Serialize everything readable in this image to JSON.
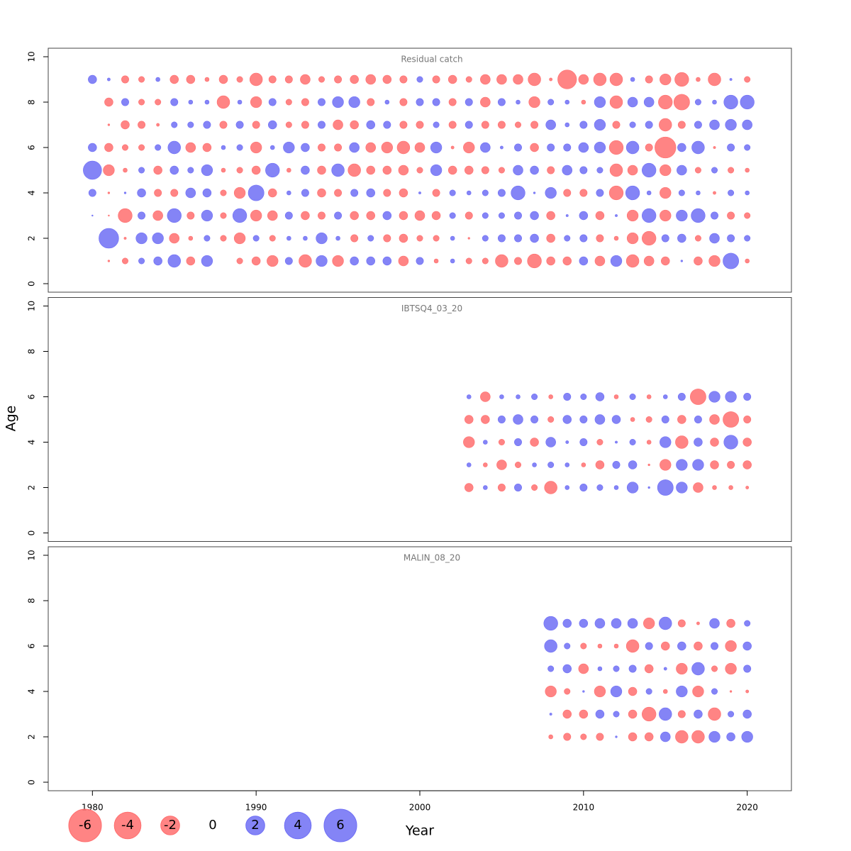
{
  "chart_data": {
    "type": "bubble",
    "xlabel": "Year",
    "ylabel": "Age",
    "xlim": [
      1977.3,
      2022.7
    ],
    "xticks": [
      1980,
      1990,
      2000,
      2010,
      2020
    ],
    "ylim": [
      -0.375,
      10.375
    ],
    "yticks": [
      0,
      2,
      4,
      6,
      8,
      10
    ],
    "positive_color": "#6f6ff5",
    "negative_color": "#ff6f6f",
    "legend": {
      "values": [
        -6,
        -4,
        -2,
        0,
        2,
        4,
        6
      ]
    },
    "panels": [
      {
        "title": "Residual catch",
        "x": [
          1980,
          1981,
          1982,
          1983,
          1984,
          1985,
          1986,
          1987,
          1988,
          1989,
          1990,
          1991,
          1992,
          1993,
          1994,
          1995,
          1996,
          1997,
          1998,
          1999,
          2000,
          2001,
          2002,
          2003,
          2004,
          2005,
          2006,
          2007,
          2008,
          2009,
          2010,
          2011,
          2012,
          2013,
          2014,
          2015,
          2016,
          2017,
          2018,
          2019,
          2020
        ],
        "ages": [
          9,
          8,
          7,
          6,
          5,
          4,
          3,
          2,
          1
        ],
        "values": [
          [
            0.4,
            0.05,
            -0.3,
            -0.2,
            0.1,
            -0.4,
            -0.4,
            -0.1,
            -0.4,
            -0.2,
            -0.9,
            -0.3,
            -0.3,
            -0.55,
            -0.2,
            -0.3,
            -0.4,
            -0.55,
            -0.4,
            -0.3,
            0.2,
            -0.3,
            -0.4,
            -0.2,
            -0.55,
            -0.55,
            -0.55,
            -0.9,
            -0.05,
            -2,
            -0.55,
            -0.9,
            -0.9,
            0.1,
            -0.3,
            -0.7,
            -1.1,
            -0.1,
            -0.9,
            0.03,
            -0.2
          ],
          [
            null,
            -0.4,
            0.3,
            -0.2,
            -0.2,
            0.3,
            0.1,
            0.1,
            -0.9,
            0.1,
            -0.7,
            0.3,
            -0.2,
            -0.3,
            0.3,
            0.7,
            0.7,
            -0.3,
            0.1,
            -0.3,
            0.3,
            0.3,
            -0.3,
            0.3,
            -0.55,
            0.3,
            0.1,
            -0.7,
            0.2,
            0.1,
            -0.1,
            0.7,
            -0.9,
            0.55,
            0.55,
            -1.1,
            -1.4,
            0.2,
            0.1,
            1.1,
            1.1
          ],
          [
            null,
            -0.02,
            -0.4,
            -0.3,
            -0.05,
            0.2,
            0.2,
            0.3,
            -0.3,
            0.3,
            -0.3,
            0.4,
            -0.2,
            -0.3,
            0.3,
            -0.55,
            -0.4,
            0.4,
            0.3,
            -0.3,
            -0.3,
            0.2,
            -0.3,
            0.3,
            -0.3,
            -0.3,
            -0.2,
            -0.3,
            0.55,
            0.1,
            0.3,
            0.7,
            -0.3,
            0.2,
            0.3,
            -0.9,
            -0.3,
            0.3,
            0.55,
            0.7,
            0.55
          ],
          [
            0.4,
            -0.4,
            -0.2,
            -0.2,
            0.2,
            0.9,
            -0.55,
            -0.4,
            0.1,
            0.2,
            -0.7,
            0.1,
            0.7,
            0.4,
            -0.3,
            -0.3,
            0.55,
            -0.55,
            -0.7,
            -0.9,
            -0.55,
            0.7,
            -0.05,
            -0.7,
            0.55,
            0.05,
            0.3,
            -0.4,
            0.3,
            0.3,
            0.55,
            0.7,
            -1.1,
            0.9,
            -0.3,
            -2.5,
            0.4,
            0.9,
            -0.03,
            0.3,
            0.2
          ],
          [
            1.9,
            -0.7,
            -0.1,
            0.2,
            -0.4,
            0.4,
            0.2,
            0.7,
            -0.1,
            -0.2,
            -0.4,
            1.1,
            -0.1,
            0.4,
            -0.4,
            0.9,
            -0.9,
            -0.4,
            -0.4,
            -0.55,
            -0.2,
            0.7,
            -0.4,
            -0.4,
            -0.3,
            -0.2,
            0.55,
            0.4,
            -0.3,
            0.55,
            0.3,
            0.2,
            -0.9,
            -0.55,
            1.1,
            -0.7,
            0.55,
            -0.2,
            0.2,
            -0.2,
            -0.1
          ],
          [
            0.3,
            -0.02,
            0.02,
            0.4,
            -0.3,
            -0.3,
            0.55,
            0.4,
            -0.2,
            -0.7,
            1.4,
            -0.4,
            0.1,
            0.3,
            -0.4,
            -0.3,
            0.3,
            0.4,
            -0.3,
            -0.4,
            0.03,
            -0.3,
            0.2,
            0.1,
            0.2,
            0.3,
            1.1,
            0.02,
            0.7,
            -0.3,
            -0.3,
            0.3,
            -1.1,
            1.1,
            0.1,
            -0.7,
            0.2,
            0.1,
            -0.05,
            0.2,
            0.1
          ],
          [
            0.01,
            -0.01,
            -1.1,
            0.3,
            -0.55,
            1.1,
            -0.3,
            0.7,
            -0.2,
            1.1,
            -0.7,
            -0.55,
            0.3,
            -0.4,
            -0.3,
            0.3,
            -0.4,
            -0.4,
            0.4,
            -0.4,
            -0.55,
            -0.4,
            0.2,
            -0.3,
            0.2,
            0.2,
            0.3,
            0.4,
            -0.4,
            0.03,
            0.4,
            -0.4,
            0.03,
            -0.7,
            1.1,
            -0.7,
            0.7,
            1.1,
            0.3,
            -0.3,
            -0.2
          ],
          [
            null,
            2.2,
            -0.03,
            0.7,
            0.7,
            -0.55,
            -0.1,
            0.2,
            -0.2,
            -0.7,
            0.2,
            -0.2,
            0.1,
            0.1,
            0.7,
            0.1,
            -0.3,
            0.2,
            -0.3,
            -0.4,
            -0.2,
            -0.2,
            0.1,
            -0.02,
            0.2,
            0.3,
            0.3,
            0.4,
            -0.4,
            0.2,
            0.3,
            -0.3,
            -0.1,
            -0.7,
            -1.1,
            0.3,
            0.4,
            -0.2,
            0.55,
            0.3,
            0.2
          ],
          [
            null,
            -0.02,
            -0.2,
            0.2,
            0.4,
            0.9,
            -0.4,
            0.7,
            null,
            -0.2,
            -0.4,
            -0.7,
            0.3,
            -0.9,
            0.7,
            -0.7,
            0.4,
            0.4,
            0.4,
            -0.55,
            0.3,
            -0.1,
            0.1,
            -0.2,
            -0.2,
            -0.9,
            -0.3,
            -1.1,
            -0.4,
            -0.4,
            0.4,
            -0.55,
            0.7,
            -0.9,
            -0.55,
            -0.4,
            0.02,
            -0.4,
            -0.7,
            1.4,
            -0.1
          ]
        ]
      },
      {
        "title": "IBTSQ4_03_20",
        "x": [
          2003,
          2004,
          2005,
          2006,
          2007,
          2008,
          2009,
          2010,
          2011,
          2012,
          2013,
          2014,
          2015,
          2016,
          2017,
          2018,
          2019,
          2020
        ],
        "ages": [
          6,
          5,
          4,
          3,
          2
        ],
        "values": [
          [
            0.1,
            -0.55,
            0.1,
            0.1,
            0.2,
            -0.1,
            0.3,
            0.2,
            0.4,
            -0.1,
            0.2,
            -0.1,
            0.1,
            0.3,
            -1.4,
            0.7,
            0.7,
            0.3
          ],
          [
            -0.4,
            -0.4,
            0.3,
            0.55,
            0.3,
            -0.2,
            0.4,
            0.3,
            0.55,
            0.4,
            -0.1,
            -0.2,
            0.3,
            -0.4,
            0.3,
            -0.55,
            -1.4,
            -0.3
          ],
          [
            -0.7,
            0.1,
            -0.2,
            0.3,
            -0.4,
            0.55,
            0.05,
            0.3,
            -0.2,
            0.03,
            0.2,
            -0.1,
            0.7,
            -0.9,
            0.4,
            -0.4,
            1.1,
            -0.4
          ],
          [
            0.1,
            -0.1,
            -0.55,
            -0.2,
            0.1,
            0.2,
            0.1,
            -0.1,
            -0.4,
            0.3,
            0.4,
            -0.02,
            -0.7,
            0.7,
            0.7,
            -0.4,
            -0.3,
            -0.4
          ],
          [
            -0.4,
            0.1,
            -0.3,
            0.3,
            -0.2,
            -0.9,
            0.1,
            0.3,
            0.2,
            0.1,
            0.7,
            0.02,
            1.4,
            0.7,
            -0.55,
            -0.1,
            -0.1,
            -0.05
          ]
        ]
      },
      {
        "title": "MALIN_08_20",
        "x": [
          2008,
          2009,
          2010,
          2011,
          2012,
          2013,
          2014,
          2015,
          2016,
          2017,
          2018,
          2019,
          2020
        ],
        "ages": [
          7,
          6,
          5,
          4,
          3,
          2
        ],
        "values": [
          [
            1.1,
            0.4,
            0.4,
            0.55,
            0.55,
            0.55,
            -0.7,
            0.9,
            -0.3,
            -0.05,
            0.55,
            -0.4,
            0.2
          ],
          [
            0.9,
            0.2,
            -0.2,
            -0.1,
            -0.1,
            -0.9,
            0.3,
            -0.4,
            0.4,
            -0.4,
            0.3,
            -0.7,
            0.4
          ],
          [
            0.2,
            0.4,
            -0.55,
            0.1,
            0.2,
            0.3,
            -0.4,
            0.05,
            -0.7,
            0.9,
            -0.2,
            -0.7,
            0.3
          ],
          [
            -0.7,
            -0.2,
            0.02,
            -0.7,
            0.7,
            -0.4,
            0.2,
            -0.1,
            0.7,
            -0.7,
            0.2,
            -0.02,
            -0.05
          ],
          [
            0.03,
            -0.4,
            -0.4,
            0.4,
            0.2,
            -0.4,
            -1.1,
            0.9,
            -0.3,
            0.4,
            -0.9,
            0.2,
            0.4
          ],
          [
            -0.1,
            -0.3,
            -0.2,
            -0.3,
            0.02,
            -0.4,
            -0.4,
            0.55,
            -0.9,
            -0.9,
            0.7,
            0.4,
            0.7
          ]
        ]
      }
    ]
  }
}
